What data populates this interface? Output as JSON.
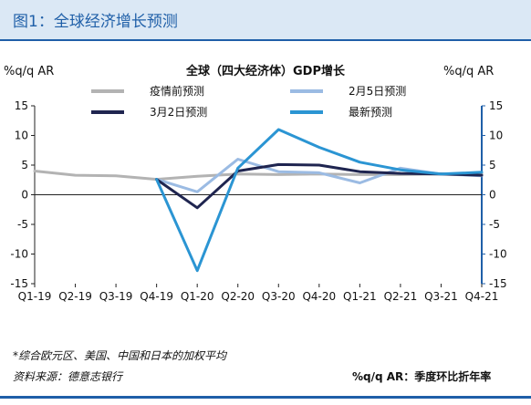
{
  "figure": {
    "title": "图1：全球经济增长预测",
    "footnote": "*综合欧元区、美国、中国和日本的加权平均",
    "source": "资料来源：德意志银行",
    "unit_note": "%q/q AR：季度环比折年率"
  },
  "colors": {
    "header_bg": "#dbe8f5",
    "accent": "#1f5fa8",
    "pre_pandemic": "#b3b3b3",
    "feb5": "#9bbbe3",
    "mar2": "#1f2550",
    "latest": "#2b95d3"
  },
  "chart_data": {
    "type": "line",
    "title": "全球（四大经济体）GDP增长",
    "ylabel_left": "%q/q AR",
    "ylabel_right": "%q/q AR",
    "ylim": [
      -15,
      15
    ],
    "yticks": [
      -15,
      -10,
      -5,
      0,
      5,
      10,
      15
    ],
    "categories": [
      "Q1-19",
      "Q2-19",
      "Q3-19",
      "Q4-19",
      "Q1-20",
      "Q2-20",
      "Q3-20",
      "Q4-20",
      "Q1-21",
      "Q2-21",
      "Q3-21",
      "Q4-21"
    ],
    "legend_placement": "top",
    "grid": false,
    "series": [
      {
        "name": "疫情前预测",
        "color": "#b3b3b3",
        "values": [
          4.0,
          3.3,
          3.2,
          2.6,
          3.1,
          3.5,
          3.4,
          3.5,
          3.4,
          3.4,
          3.5,
          3.5
        ]
      },
      {
        "name": "2月5日预测",
        "color": "#9bbbe3",
        "values": [
          null,
          null,
          null,
          2.6,
          0.5,
          6.0,
          3.9,
          3.7,
          2.0,
          4.5,
          3.5,
          3.2
        ]
      },
      {
        "name": "3月2日预测",
        "color": "#1f2550",
        "values": [
          null,
          null,
          null,
          2.6,
          -2.2,
          4.0,
          5.1,
          5.0,
          3.9,
          3.6,
          3.5,
          3.3
        ]
      },
      {
        "name": "最新预测",
        "color": "#2b95d3",
        "values": [
          null,
          null,
          null,
          2.6,
          -12.8,
          4.5,
          11.0,
          8.0,
          5.5,
          4.2,
          3.5,
          3.8
        ]
      }
    ]
  }
}
